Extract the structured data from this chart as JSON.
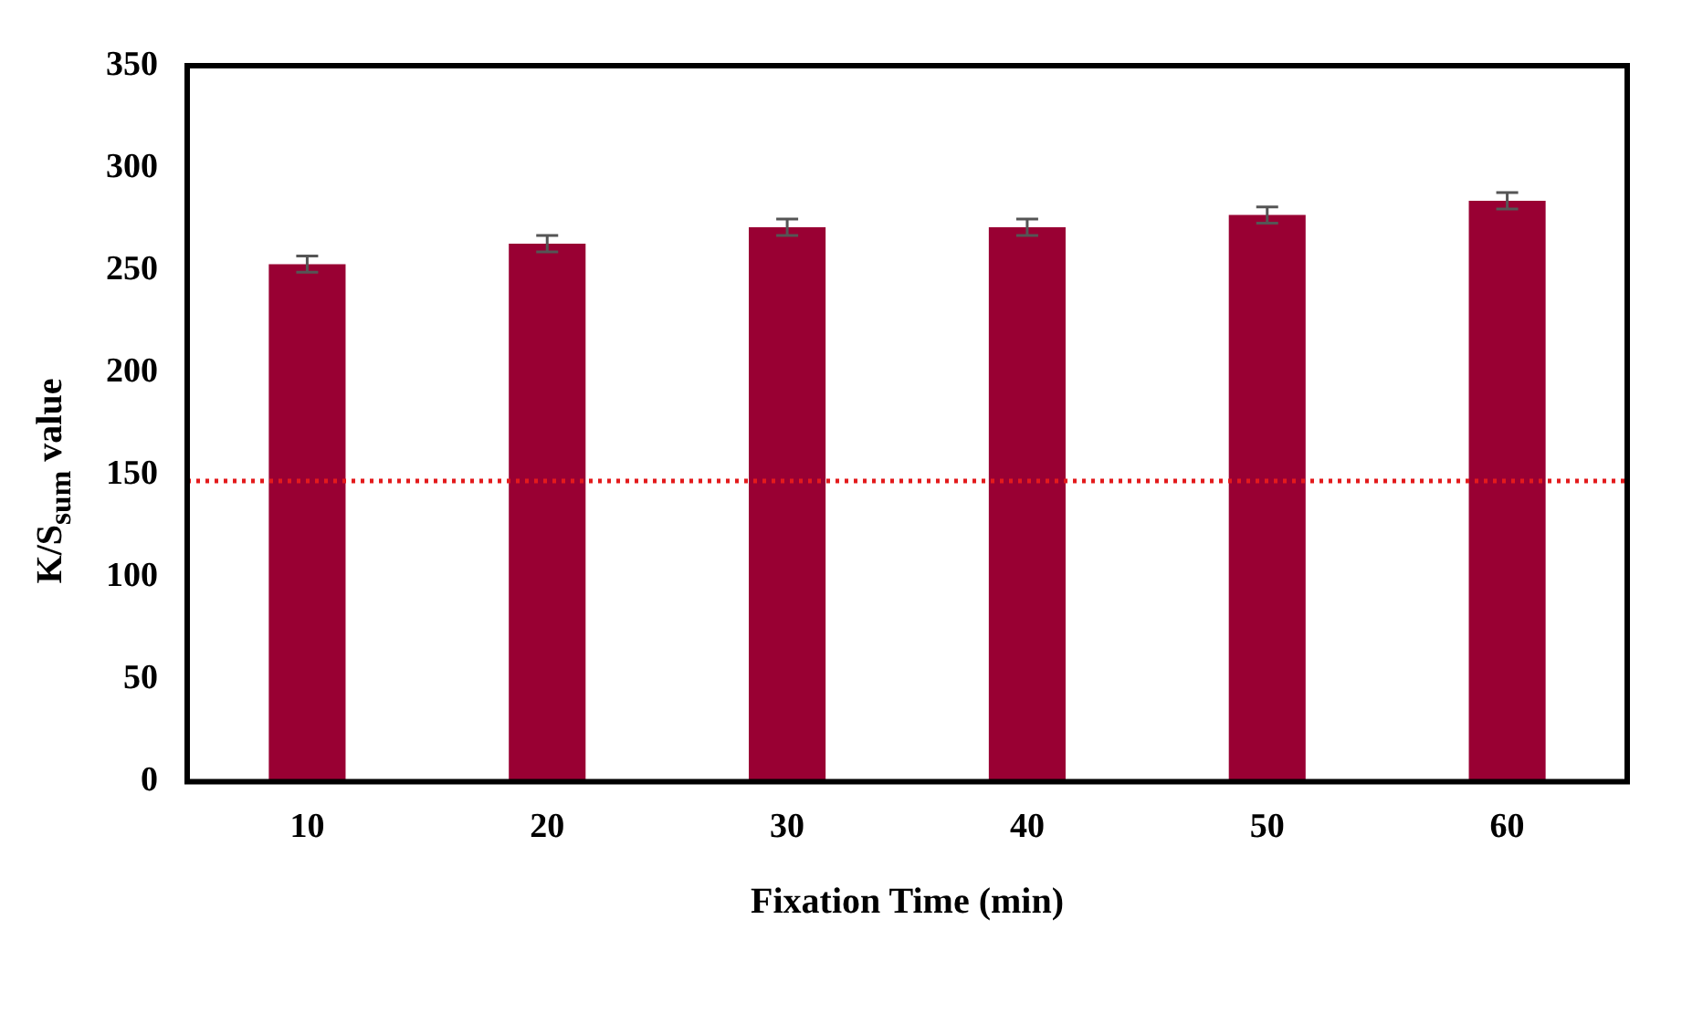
{
  "chart_data": {
    "type": "bar",
    "xlabel": "Fixation Time (min)",
    "ylabel": "K/S$_{sum}$  value",
    "categories": [
      "10",
      "20",
      "30",
      "40",
      "50",
      "60"
    ],
    "values": [
      253,
      263,
      271,
      271,
      277,
      284
    ],
    "errors": [
      4,
      4,
      4,
      4,
      4,
      4
    ],
    "color": "#990033",
    "ylim": [
      0,
      350
    ],
    "yticks": [
      0,
      50,
      100,
      150,
      200,
      250,
      300,
      350
    ],
    "grid": false,
    "legend": false,
    "ref_lines": [
      {
        "axis": "y",
        "value": 147,
        "color": "#e31a1c",
        "line_style": "dotted"
      }
    ]
  }
}
